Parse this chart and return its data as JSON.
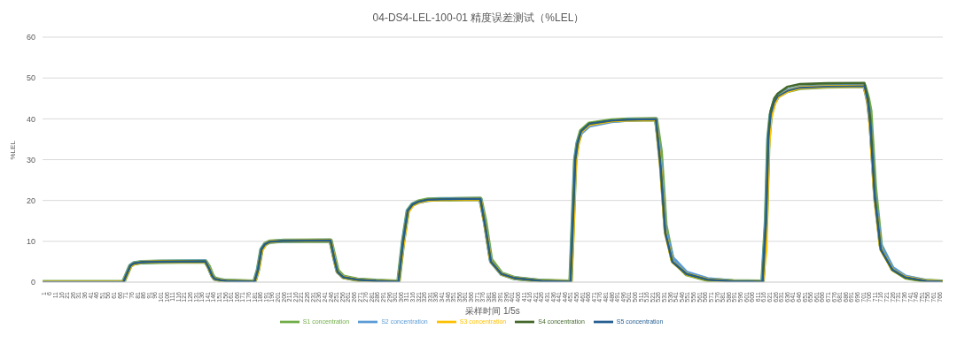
{
  "chart_data": {
    "type": "line",
    "title": "04-DS4-LEL-100-01 精度误差测试（%LEL）",
    "xlabel": "采样时间 1/5s",
    "ylabel": "%LEL",
    "x": [
      1,
      69,
      72,
      75,
      78,
      85,
      100,
      139,
      142,
      145,
      147,
      152,
      157,
      170,
      181,
      184,
      187,
      190,
      194,
      205,
      246,
      249,
      252,
      257,
      269,
      285,
      304,
      308,
      312,
      316,
      321,
      329,
      340,
      374,
      378,
      383,
      392,
      403,
      426,
      451,
      453,
      455,
      457,
      460,
      467,
      486,
      500,
      524,
      528,
      532,
      538,
      550,
      568,
      590,
      615,
      618,
      620,
      622,
      625,
      628,
      636,
      647,
      670,
      702,
      705,
      707,
      711,
      716,
      726,
      737,
      755,
      768
    ],
    "series": [
      {
        "name": "S1 concentration",
        "color": "#70ad47",
        "values": [
          0,
          0,
          2,
          4,
          4.6,
          4.9,
          5.0,
          5.1,
          3.8,
          1.7,
          0.9,
          0.5,
          0.3,
          0.2,
          0.1,
          3,
          8,
          9.3,
          9.9,
          10.1,
          10.2,
          6.5,
          2.8,
          1.3,
          0.6,
          0.3,
          0.1,
          10,
          17.5,
          19,
          19.7,
          20.2,
          20.3,
          20.4,
          15,
          5.5,
          2.1,
          1,
          0.3,
          0.1,
          15,
          30,
          34,
          37,
          38.8,
          39.6,
          39.8,
          39.9,
          32,
          14,
          5.5,
          2,
          0.6,
          0.2,
          0.1,
          15,
          35,
          41,
          44,
          45.5,
          46.8,
          47.6,
          47.9,
          48.1,
          45,
          42,
          23,
          9,
          3.2,
          1.2,
          0.3,
          0.1
        ]
      },
      {
        "name": "S2 concentration",
        "color": "#5b9bd5",
        "values": [
          0,
          0,
          2,
          4,
          4.6,
          4.9,
          5.0,
          5.1,
          3.5,
          1.5,
          0.8,
          0.5,
          0.3,
          0.2,
          0.1,
          3,
          8,
          9.3,
          9.9,
          10.1,
          10.2,
          6,
          2.5,
          1.2,
          0.6,
          0.3,
          0.1,
          10,
          17.5,
          19,
          19.6,
          20.1,
          20.3,
          20.4,
          14,
          5,
          2,
          1,
          0.3,
          0.1,
          15,
          30,
          34,
          36.5,
          38.3,
          39.4,
          39.7,
          39.9,
          29,
          13,
          6,
          2.4,
          0.8,
          0.2,
          0.1,
          15,
          35,
          41,
          44,
          45.5,
          46.9,
          47.7,
          48.0,
          48.1,
          44,
          39,
          21,
          9,
          3.5,
          1.4,
          0.3,
          0.1
        ]
      },
      {
        "name": "S3 concentration",
        "color": "#ffc000",
        "values": [
          0,
          0,
          1.8,
          3.8,
          4.5,
          4.9,
          5.0,
          5.0,
          3.5,
          1.5,
          0.8,
          0.5,
          0.3,
          0.2,
          0.1,
          2.5,
          7.5,
          9.2,
          9.9,
          10.1,
          10.2,
          6,
          2.5,
          1.2,
          0.6,
          0.3,
          0.1,
          9,
          17,
          18.8,
          19.6,
          20.1,
          20.2,
          20.3,
          14,
          5,
          2,
          1,
          0.3,
          0.1,
          10,
          28,
          33,
          36.8,
          38.6,
          39.5,
          39.7,
          39.8,
          28,
          12,
          5,
          2,
          0.6,
          0.2,
          0.1,
          8,
          32,
          40,
          43.5,
          45.3,
          46.7,
          47.6,
          47.9,
          48.0,
          44,
          38,
          20,
          8,
          3,
          1.2,
          0.3,
          0.1
        ]
      },
      {
        "name": "S4 concentration",
        "color": "#43682b",
        "values": [
          0,
          0,
          2,
          4,
          4.6,
          4.9,
          5.0,
          5.1,
          3.5,
          1.5,
          0.8,
          0.5,
          0.3,
          0.2,
          0.1,
          3,
          8,
          9.3,
          9.9,
          10.1,
          10.2,
          6,
          2.5,
          1.2,
          0.6,
          0.3,
          0.1,
          10,
          17.5,
          19,
          19.7,
          20.2,
          20.3,
          20.4,
          14,
          5,
          2,
          1,
          0.3,
          0.1,
          15,
          30,
          34,
          37,
          38.8,
          39.6,
          39.8,
          39.9,
          28,
          12,
          5,
          2,
          0.6,
          0.2,
          0.1,
          15,
          36,
          42,
          45,
          46.2,
          47.8,
          48.5,
          48.7,
          48.8,
          45,
          40,
          21,
          8,
          3,
          1.1,
          0.2,
          0.1
        ]
      },
      {
        "name": "S5 concentration",
        "color": "#255e91",
        "values": [
          0,
          0,
          2,
          4,
          4.6,
          4.9,
          5.0,
          5.1,
          3.5,
          1.5,
          0.8,
          0.5,
          0.3,
          0.2,
          0.1,
          3,
          8,
          9.3,
          9.9,
          10.1,
          10.2,
          6,
          2.5,
          1.2,
          0.6,
          0.3,
          0.1,
          10,
          17.5,
          19,
          19.7,
          20.2,
          20.3,
          20.4,
          14,
          5,
          2,
          1,
          0.3,
          0.1,
          15,
          30,
          34,
          37,
          38.8,
          39.6,
          39.8,
          39.9,
          28,
          12,
          5,
          2,
          0.6,
          0.2,
          0.1,
          15,
          35,
          41,
          44,
          45.5,
          46.8,
          47.6,
          47.9,
          48.0,
          44,
          38,
          20,
          8,
          3,
          1.2,
          0.3,
          0.1
        ]
      }
    ],
    "xlim": [
      0,
      769
    ],
    "xticks": [
      1,
      6,
      11,
      16,
      21,
      26,
      31,
      36,
      41,
      46,
      51,
      56,
      61,
      66,
      71,
      76,
      81,
      86,
      91,
      96,
      101,
      106,
      111,
      116,
      121,
      126,
      131,
      136,
      141,
      146,
      151,
      156,
      161,
      166,
      171,
      176,
      181,
      186,
      191,
      196,
      201,
      206,
      211,
      216,
      221,
      226,
      231,
      236,
      241,
      246,
      251,
      256,
      261,
      266,
      271,
      276,
      281,
      286,
      291,
      296,
      301,
      306,
      311,
      316,
      321,
      326,
      331,
      336,
      341,
      346,
      351,
      356,
      361,
      366,
      371,
      376,
      381,
      386,
      391,
      396,
      401,
      406,
      411,
      416,
      421,
      426,
      431,
      436,
      441,
      446,
      451,
      456,
      461,
      466,
      471,
      476,
      481,
      486,
      491,
      496,
      501,
      506,
      511,
      516,
      521,
      526,
      531,
      536,
      541,
      546,
      551,
      556,
      561,
      566,
      571,
      576,
      581,
      586,
      591,
      596,
      601,
      606,
      611,
      616,
      621,
      626,
      631,
      636,
      641,
      646,
      651,
      656,
      661,
      666,
      671,
      676,
      681,
      686,
      691,
      696,
      701,
      706,
      711,
      716,
      721,
      726,
      731,
      736,
      741,
      746,
      751,
      756,
      761,
      766
    ],
    "ylim": [
      0,
      60
    ],
    "yticks": [
      0,
      10,
      20,
      30,
      40,
      50,
      60
    ],
    "grid": "y",
    "legend": "bottom"
  }
}
